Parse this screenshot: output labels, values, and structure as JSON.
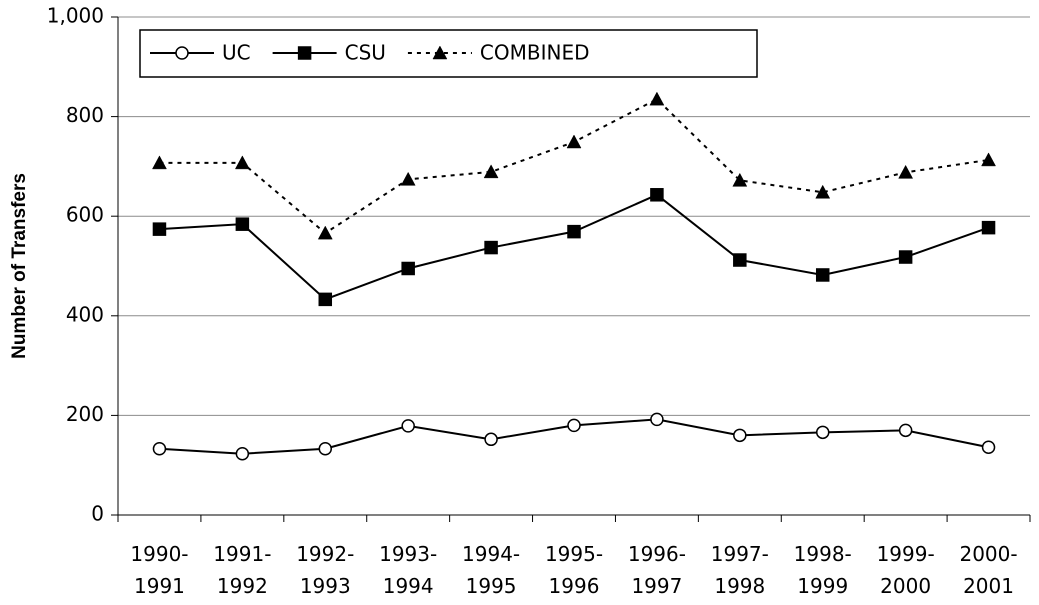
{
  "chart_data": {
    "type": "line",
    "y_label": "Number of Transfers",
    "categories": [
      "1990-1991",
      "1991-1992",
      "1992-1993",
      "1993-1994",
      "1994-1995",
      "1995-1996",
      "1996-1997",
      "1997-1998",
      "1998-1999",
      "1999-2000",
      "2000-2001"
    ],
    "series": [
      {
        "name": "UC",
        "color": "#000000",
        "dash": "solid",
        "marker": "circle",
        "values": [
          133,
          123,
          133,
          179,
          152,
          180,
          192,
          160,
          166,
          170,
          136
        ]
      },
      {
        "name": "CSU",
        "color": "#000000",
        "dash": "solid",
        "marker": "square",
        "values": [
          574,
          584,
          433,
          495,
          537,
          569,
          643,
          512,
          482,
          518,
          577
        ]
      },
      {
        "name": "COMBINED",
        "color": "#000000",
        "dash": "dotted",
        "marker": "triangle",
        "values": [
          707,
          707,
          566,
          674,
          689,
          749,
          835,
          672,
          648,
          688,
          713
        ]
      }
    ],
    "ylim": [
      0,
      1000
    ],
    "yticks": [
      0,
      200,
      400,
      600,
      800,
      {
        "value": 1000,
        "label": "1,000"
      }
    ],
    "grid": true,
    "legend": "top-left"
  }
}
